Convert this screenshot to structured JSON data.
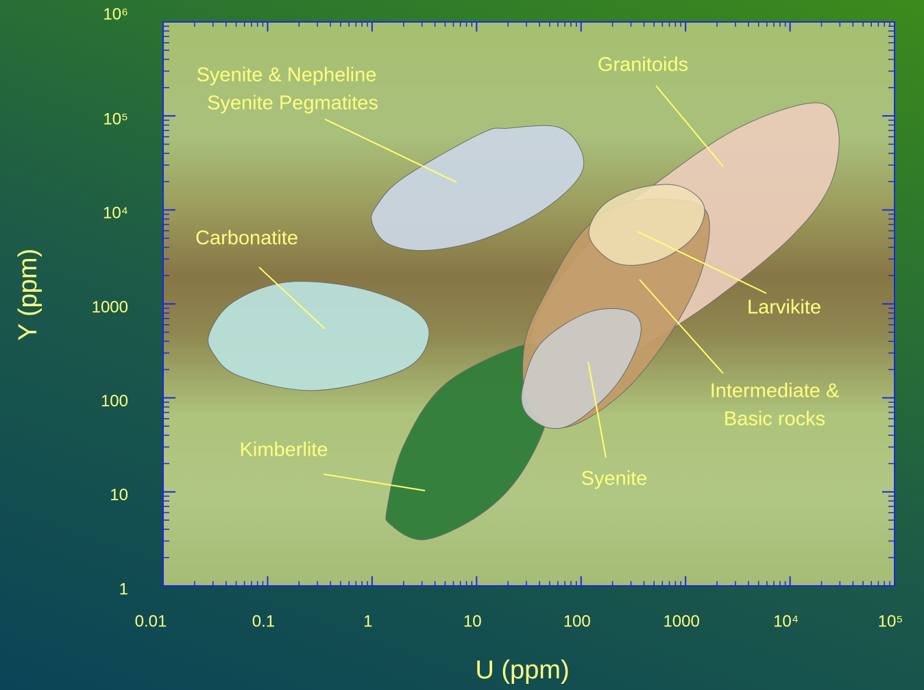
{
  "chart_data": {
    "type": "region",
    "x_label": "U (ppm)",
    "y_label": "Y (ppm)",
    "log_x": true,
    "log_y": true,
    "xlim": [
      0.01,
      100000
    ],
    "ylim": [
      1,
      1000000
    ],
    "xticks": [
      0.01,
      0.1,
      1,
      10,
      100,
      1000,
      {
        "value": 10000,
        "label": "10⁴"
      },
      {
        "value": 100000,
        "label": "10⁵"
      }
    ],
    "yticks": [
      1,
      10,
      100,
      1000,
      {
        "value": 10000,
        "label": "10⁴"
      },
      {
        "value": 100000,
        "label": "10⁵"
      },
      {
        "value": 1000000,
        "label": "10⁶"
      }
    ],
    "series": [
      {
        "name": [
          "Carbonatite"
        ],
        "color": "#b9e0da",
        "x": [
          0.028,
          0.047,
          0.15,
          0.7,
          2.4,
          3.5,
          2,
          0.29,
          0.054,
          0.03
        ],
        "y": [
          500,
          1050,
          1700,
          1500,
          900,
          460,
          200,
          120,
          170,
          300
        ]
      },
      {
        "name": [
          "Syenite & Nepheline",
          "Syenite Pegmatites"
        ],
        "color": "#c9d5e2",
        "x": [
          1.1,
          2,
          11,
          20,
          60,
          100,
          95,
          40,
          11,
          3.2,
          1.4,
          1
        ],
        "y": [
          11000,
          22000,
          65000,
          74000,
          76000,
          43000,
          22000,
          9400,
          4800,
          3700,
          4400,
          7300
        ]
      },
      {
        "name": [
          "Granitoids"
        ],
        "color": "#e9cbb8",
        "x": [
          36,
          140,
          550,
          3300,
          18000,
          29000,
          24000,
          9600,
          1800,
          470,
          120,
          42
        ],
        "y": [
          640,
          5600,
          20000,
          76000,
          138000,
          71000,
          18000,
          4800,
          1060,
          390,
          140,
          130
        ]
      },
      {
        "name": [
          "Kimberlite"
        ],
        "color": "#2f7c3a",
        "x": [
          1.4,
          2,
          5,
          27,
          42,
          49,
          27,
          11,
          3.2,
          1.5
        ],
        "y": [
          6.9,
          31,
          140,
          360,
          280,
          72,
          16,
          5.8,
          3.1,
          4.5
        ]
      },
      {
        "name": [
          "Intermediate &",
          "Basic rocks"
        ],
        "color": "#c29c68",
        "x": [
          29,
          49,
          100,
          220,
          630,
          1600,
          1400,
          630,
          220,
          66,
          31
        ],
        "y": [
          390,
          1500,
          5600,
          11000,
          13000,
          9400,
          2100,
          390,
          100,
          48,
          85
        ]
      },
      {
        "name": [
          "Larvikite"
        ],
        "color": "#f2e3b6",
        "x": [
          120,
          160,
          350,
          860,
          1500,
          1200,
          550,
          220
        ],
        "y": [
          5200,
          11000,
          17000,
          18000,
          11000,
          5200,
          2900,
          2700
        ]
      },
      {
        "name": [
          "Syenite"
        ],
        "color": "#cacac6",
        "x": [
          28,
          42,
          120,
          300,
          370,
          220,
          90,
          49,
          29
        ],
        "y": [
          140,
          390,
          820,
          820,
          460,
          140,
          56,
          48,
          72
        ]
      }
    ]
  }
}
